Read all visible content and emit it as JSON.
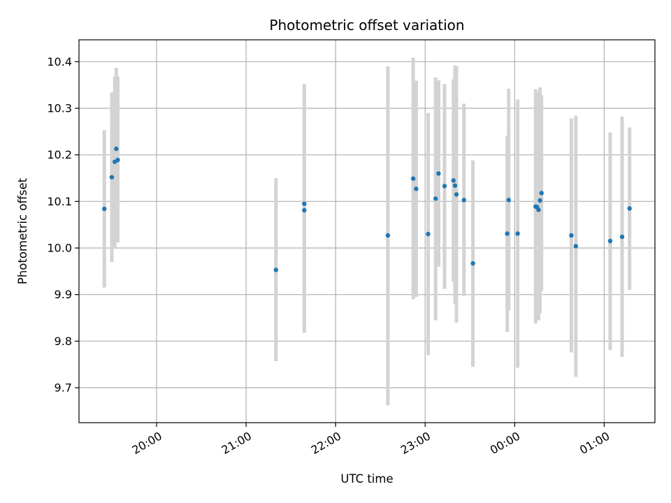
{
  "chart_data": {
    "type": "scatter",
    "title": "Photometric offset variation",
    "xlabel": "UTC time",
    "ylabel": "Photometric offset",
    "x_unit": "UTC time",
    "xlim": [
      "19:08",
      "01:34"
    ],
    "ylim": [
      9.625,
      10.447
    ],
    "grid": true,
    "x_ticks": [
      "20:00",
      "21:00",
      "22:00",
      "23:00",
      "00:00",
      "01:00"
    ],
    "y_ticks": [
      "9.7",
      "9.8",
      "9.9",
      "10.0",
      "10.1",
      "10.2",
      "10.3",
      "10.4"
    ],
    "colors": {
      "points": "#1f77b4",
      "errorbars": "#d3d3d3",
      "grid": "#b0b0b0"
    },
    "points": [
      {
        "x": "19:25",
        "y": 10.084,
        "ylow": 9.915,
        "yhigh": 10.253
      },
      {
        "x": "19:30",
        "y": 10.152,
        "ylow": 9.97,
        "yhigh": 10.334
      },
      {
        "x": "19:32",
        "y": 10.185,
        "ylow": 10.0,
        "yhigh": 10.368
      },
      {
        "x": "19:33",
        "y": 10.213,
        "ylow": 10.04,
        "yhigh": 10.387
      },
      {
        "x": "19:34",
        "y": 10.189,
        "ylow": 10.012,
        "yhigh": 10.368
      },
      {
        "x": "21:20",
        "y": 9.953,
        "ylow": 9.757,
        "yhigh": 10.15
      },
      {
        "x": "21:39",
        "y": 10.081,
        "ylow": 9.818,
        "yhigh": 10.345
      },
      {
        "x": "21:39",
        "y": 10.095,
        "ylow": 9.84,
        "yhigh": 10.352
      },
      {
        "x": "22:35",
        "y": 10.027,
        "ylow": 9.662,
        "yhigh": 10.39
      },
      {
        "x": "22:52",
        "y": 10.149,
        "ylow": 9.89,
        "yhigh": 10.409
      },
      {
        "x": "22:54",
        "y": 10.127,
        "ylow": 9.895,
        "yhigh": 10.359
      },
      {
        "x": "23:02",
        "y": 10.03,
        "ylow": 9.77,
        "yhigh": 10.29
      },
      {
        "x": "23:07",
        "y": 10.106,
        "ylow": 9.845,
        "yhigh": 10.366
      },
      {
        "x": "23:09",
        "y": 10.16,
        "ylow": 9.96,
        "yhigh": 10.36
      },
      {
        "x": "23:13",
        "y": 10.133,
        "ylow": 9.912,
        "yhigh": 10.352
      },
      {
        "x": "23:19",
        "y": 10.145,
        "ylow": 9.928,
        "yhigh": 10.362
      },
      {
        "x": "23:20",
        "y": 10.134,
        "ylow": 9.88,
        "yhigh": 10.392
      },
      {
        "x": "23:21",
        "y": 10.115,
        "ylow": 9.84,
        "yhigh": 10.39
      },
      {
        "x": "23:26",
        "y": 10.103,
        "ylow": 9.897,
        "yhigh": 10.31
      },
      {
        "x": "23:32",
        "y": 9.967,
        "ylow": 9.745,
        "yhigh": 10.188
      },
      {
        "x": "23:55",
        "y": 10.031,
        "ylow": 9.82,
        "yhigh": 10.241
      },
      {
        "x": "23:56",
        "y": 10.103,
        "ylow": 9.866,
        "yhigh": 10.342
      },
      {
        "x": "00:02",
        "y": 10.031,
        "ylow": 9.743,
        "yhigh": 10.319
      },
      {
        "x": "00:14",
        "y": 10.089,
        "ylow": 9.838,
        "yhigh": 10.341
      },
      {
        "x": "00:15",
        "y": 10.088,
        "ylow": 9.845,
        "yhigh": 10.335
      },
      {
        "x": "00:16",
        "y": 10.082,
        "ylow": 9.845,
        "yhigh": 10.32
      },
      {
        "x": "00:17",
        "y": 10.102,
        "ylow": 9.86,
        "yhigh": 10.345
      },
      {
        "x": "00:18",
        "y": 10.118,
        "ylow": 9.908,
        "yhigh": 10.328
      },
      {
        "x": "00:38",
        "y": 10.027,
        "ylow": 9.776,
        "yhigh": 10.278
      },
      {
        "x": "00:41",
        "y": 10.004,
        "ylow": 9.723,
        "yhigh": 10.284
      },
      {
        "x": "01:04",
        "y": 10.015,
        "ylow": 9.781,
        "yhigh": 10.248
      },
      {
        "x": "01:12",
        "y": 10.024,
        "ylow": 9.766,
        "yhigh": 10.282
      },
      {
        "x": "01:17",
        "y": 10.085,
        "ylow": 9.91,
        "yhigh": 10.259
      }
    ]
  }
}
